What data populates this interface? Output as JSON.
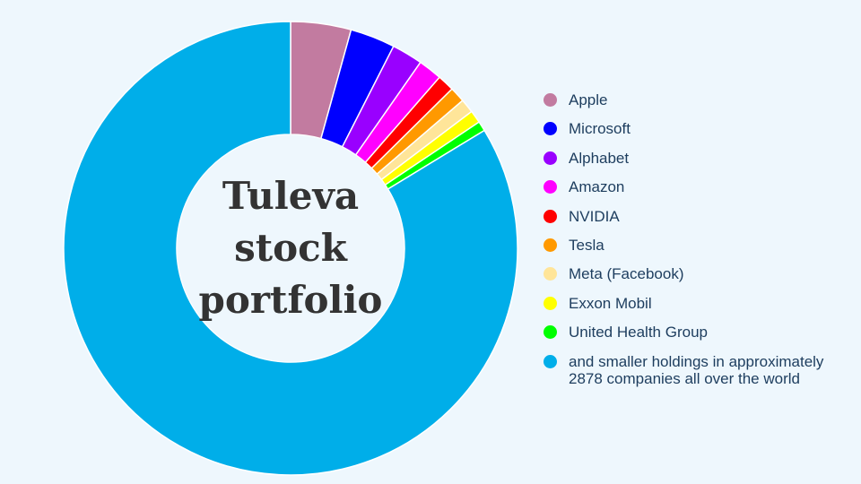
{
  "chart_data": {
    "type": "donut",
    "title": "Tuleva stock portfolio",
    "categories": [
      "Apple",
      "Microsoft",
      "Alphabet",
      "Amazon",
      "NVIDIA",
      "Tesla",
      "Meta (Facebook)",
      "Exxon Mobil",
      "United Health Group",
      "and smaller holdings in approximately 2878 companies all over the world"
    ],
    "values": [
      4.3,
      3.2,
      2.2,
      1.7,
      1.2,
      1.1,
      1.0,
      0.9,
      0.7,
      83.7
    ],
    "colors": [
      "#c27ba0",
      "#0000ff",
      "#9900ff",
      "#ff00ff",
      "#ff0000",
      "#ff9900",
      "#ffe599",
      "#ffff00",
      "#00ff00",
      "#00aee9"
    ],
    "legend": "right"
  }
}
